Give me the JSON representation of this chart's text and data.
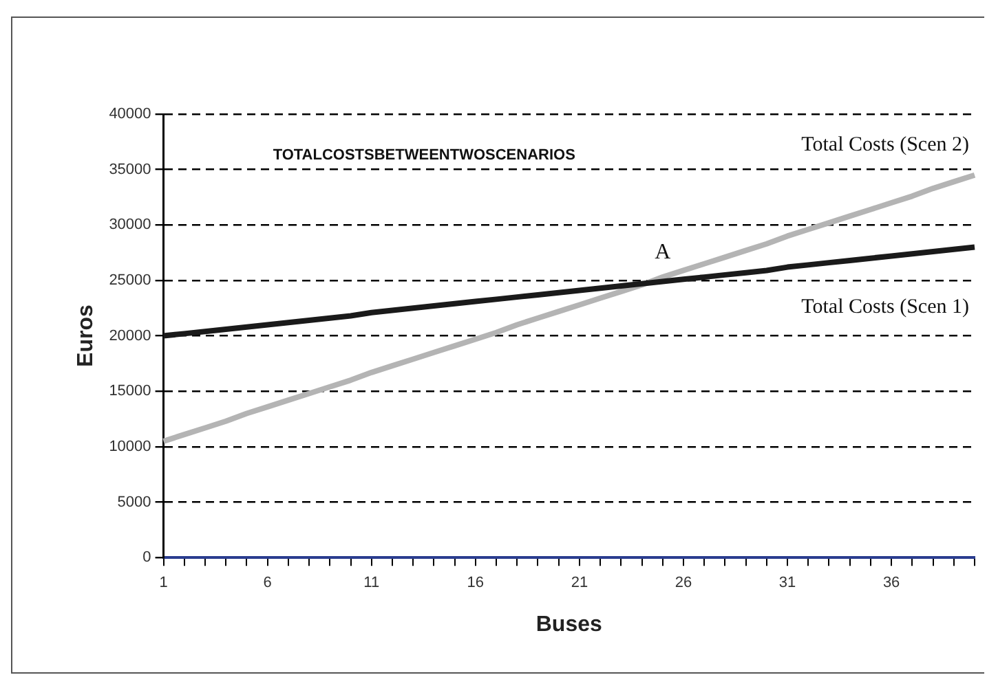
{
  "chart_data": {
    "type": "line",
    "title": "TOTALCOSTSBETWEENTWOSCENARIOS",
    "xlabel": "Buses",
    "ylabel": "Euros",
    "categories": [
      "1",
      null,
      null,
      null,
      null,
      "6",
      null,
      null,
      null,
      null,
      "11",
      null,
      null,
      null,
      null,
      "16",
      null,
      null,
      null,
      null,
      "21",
      null,
      null,
      null,
      null,
      "26",
      null,
      null,
      null,
      null,
      "31",
      null,
      null,
      null,
      null,
      "36",
      null,
      null,
      null,
      null
    ],
    "series": [
      {
        "name": "Total Costs (Scen 1)",
        "color": "#1a1a1a",
        "values": [
          20000,
          20200,
          20400,
          20600,
          20800,
          21000,
          21200,
          21400,
          21600,
          21800,
          22100,
          22300,
          22500,
          22700,
          22900,
          23100,
          23300,
          23500,
          23700,
          23900,
          24100,
          24300,
          24500,
          24700,
          24900,
          25100,
          25300,
          25500,
          25700,
          25900,
          26200,
          26400,
          26600,
          26800,
          27000,
          27200,
          27400,
          27600,
          27800,
          28000
        ]
      },
      {
        "name": "Total Costs (Scen 2)",
        "color": "#b4b4b4",
        "values": [
          10500,
          11100,
          11700,
          12300,
          13000,
          13600,
          14200,
          14800,
          15400,
          16000,
          16700,
          17300,
          17900,
          18500,
          19100,
          19700,
          20300,
          21000,
          21600,
          22200,
          22800,
          23400,
          24000,
          24600,
          25300,
          25900,
          26500,
          27100,
          27700,
          28300,
          29000,
          29600,
          30200,
          30800,
          31400,
          32000,
          32600,
          33300,
          33900,
          34500
        ]
      }
    ],
    "annotations": [
      "A"
    ],
    "ylim": [
      0,
      40000
    ],
    "yticks": [
      0,
      5000,
      10000,
      15000,
      20000,
      25000,
      30000,
      35000,
      40000
    ],
    "grid": "y",
    "legend": false,
    "marker": "none",
    "line_style": "solid"
  }
}
